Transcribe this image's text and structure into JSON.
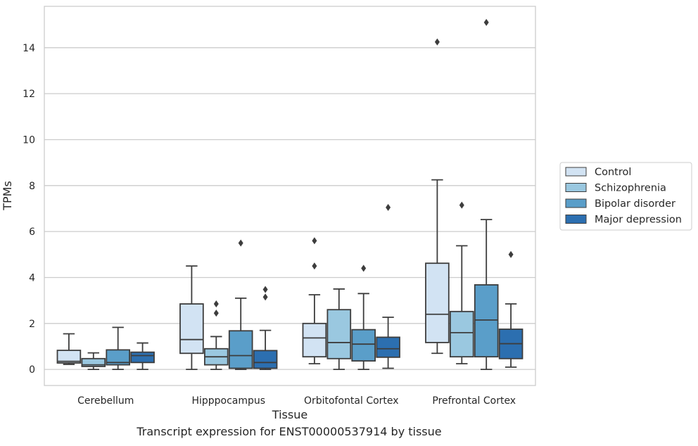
{
  "chart_data": {
    "type": "box",
    "xlabel": "Tissue",
    "ylabel": "TPMs",
    "ylim": [
      -0.7,
      15.8
    ],
    "yticks": [
      0,
      2,
      4,
      6,
      8,
      10,
      12,
      14
    ],
    "grid": "horizontal",
    "legend_position": "right",
    "categories": [
      "Cerebellum",
      "Hipppocampus",
      "Orbitofontal Cortex",
      "Prefrontal Cortex"
    ],
    "series": [
      {
        "name": "Control",
        "color": "#d2e3f3",
        "boxes": [
          {
            "whislo": 0.22,
            "q1": 0.28,
            "med": 0.35,
            "q3": 0.83,
            "whishi": 1.55,
            "fliers": []
          },
          {
            "whislo": 0.0,
            "q1": 0.7,
            "med": 1.3,
            "q3": 2.85,
            "whishi": 4.5,
            "fliers": []
          },
          {
            "whislo": 0.25,
            "q1": 0.55,
            "med": 1.37,
            "q3": 2.0,
            "whishi": 3.25,
            "fliers": [
              4.5,
              5.6
            ]
          },
          {
            "whislo": 0.7,
            "q1": 1.17,
            "med": 2.4,
            "q3": 4.62,
            "whishi": 8.25,
            "fliers": [
              14.25
            ]
          }
        ]
      },
      {
        "name": "Schizophrenia",
        "color": "#9ac8e0",
        "boxes": [
          {
            "whislo": 0.0,
            "q1": 0.13,
            "med": 0.2,
            "q3": 0.47,
            "whishi": 0.72,
            "fliers": []
          },
          {
            "whislo": 0.0,
            "q1": 0.2,
            "med": 0.55,
            "q3": 0.9,
            "whishi": 1.43,
            "fliers": [
              2.45,
              2.85
            ]
          },
          {
            "whislo": 0.0,
            "q1": 0.47,
            "med": 1.17,
            "q3": 2.6,
            "whishi": 3.5,
            "fliers": []
          },
          {
            "whislo": 0.25,
            "q1": 0.55,
            "med": 1.6,
            "q3": 2.52,
            "whishi": 5.38,
            "fliers": [
              7.15
            ]
          }
        ]
      },
      {
        "name": "Bipolar disorder",
        "color": "#5a9ec9",
        "boxes": [
          {
            "whislo": 0.0,
            "q1": 0.2,
            "med": 0.3,
            "q3": 0.85,
            "whishi": 1.83,
            "fliers": []
          },
          {
            "whislo": 0.0,
            "q1": 0.05,
            "med": 0.6,
            "q3": 1.68,
            "whishi": 3.1,
            "fliers": [
              5.5
            ]
          },
          {
            "whislo": 0.0,
            "q1": 0.37,
            "med": 1.1,
            "q3": 1.73,
            "whishi": 3.3,
            "fliers": [
              4.4
            ]
          },
          {
            "whislo": 0.0,
            "q1": 0.55,
            "med": 2.15,
            "q3": 3.68,
            "whishi": 6.52,
            "fliers": [
              15.1
            ]
          }
        ]
      },
      {
        "name": "Major depression",
        "color": "#2c6fb0",
        "boxes": [
          {
            "whislo": 0.0,
            "q1": 0.3,
            "med": 0.6,
            "q3": 0.75,
            "whishi": 1.15,
            "fliers": []
          },
          {
            "whislo": 0.0,
            "q1": 0.05,
            "med": 0.3,
            "q3": 0.82,
            "whishi": 1.7,
            "fliers": [
              3.15,
              3.48
            ]
          },
          {
            "whislo": 0.05,
            "q1": 0.53,
            "med": 0.9,
            "q3": 1.4,
            "whishi": 2.27,
            "fliers": [
              7.05
            ]
          },
          {
            "whislo": 0.1,
            "q1": 0.47,
            "med": 1.12,
            "q3": 1.75,
            "whishi": 2.85,
            "fliers": [
              5.0
            ]
          }
        ]
      }
    ]
  },
  "caption": "Transcript expression for ENST00000537914 by tissue"
}
